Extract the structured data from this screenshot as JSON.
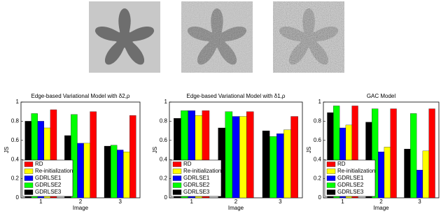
{
  "chart_data": [
    {
      "type": "bar",
      "title": "Edge-based Variational Model with δ2,ρ",
      "xlabel": "Image",
      "ylabel": "JS",
      "categories": [
        "1",
        "2",
        "3"
      ],
      "series": [
        {
          "name": "RD",
          "color": "#ff0000",
          "values": [
            0.92,
            0.9,
            0.86
          ]
        },
        {
          "name": "Re-initialization",
          "color": "#ffff00",
          "values": [
            0.73,
            0.57,
            0.48
          ]
        },
        {
          "name": "GDRLSE1",
          "color": "#0000ff",
          "values": [
            0.8,
            0.57,
            0.5
          ]
        },
        {
          "name": "GDRLSE2",
          "color": "#00ff00",
          "values": [
            0.88,
            0.87,
            0.55
          ]
        },
        {
          "name": "GDRLSE3",
          "color": "#000000",
          "values": [
            0.8,
            0.65,
            0.54
          ]
        }
      ],
      "ylim": [
        0,
        1
      ],
      "yticks": [
        0,
        0.2,
        0.4,
        0.6,
        0.8,
        1
      ],
      "legend": "lower left"
    },
    {
      "type": "bar",
      "title": "Edge-based Variational Model with δ1,ρ",
      "xlabel": "Image",
      "ylabel": "JS",
      "categories": [
        "1",
        "2",
        "3"
      ],
      "series": [
        {
          "name": "RD",
          "color": "#ff0000",
          "values": [
            0.91,
            0.9,
            0.85
          ]
        },
        {
          "name": "Re-initialization",
          "color": "#ffff00",
          "values": [
            0.86,
            0.85,
            0.71
          ]
        },
        {
          "name": "GDRLSE1",
          "color": "#0000ff",
          "values": [
            0.91,
            0.85,
            0.67
          ]
        },
        {
          "name": "GDRLSE2",
          "color": "#00ff00",
          "values": [
            0.91,
            0.9,
            0.64
          ]
        },
        {
          "name": "GDRLSE3",
          "color": "#000000",
          "values": [
            0.83,
            0.73,
            0.7
          ]
        }
      ],
      "ylim": [
        0,
        1
      ],
      "yticks": [
        0,
        0.2,
        0.4,
        0.6,
        0.8,
        1
      ],
      "legend": "lower left"
    },
    {
      "type": "bar",
      "title": "GAC Model",
      "xlabel": "Image",
      "ylabel": "JS",
      "categories": [
        "1",
        "2",
        "3"
      ],
      "series": [
        {
          "name": "RD",
          "color": "#ff0000",
          "values": [
            0.96,
            0.93,
            0.93
          ]
        },
        {
          "name": "Re-initialization",
          "color": "#ffff00",
          "values": [
            0.76,
            0.53,
            0.49
          ]
        },
        {
          "name": "GDRLSE1",
          "color": "#0000ff",
          "values": [
            0.73,
            0.48,
            0.29
          ]
        },
        {
          "name": "GDRLSE2",
          "color": "#00ff00",
          "values": [
            0.96,
            0.93,
            0.88
          ]
        },
        {
          "name": "GDRLSE3",
          "color": "#000000",
          "values": [
            0.89,
            0.79,
            0.51
          ]
        }
      ],
      "ylim": [
        0,
        1
      ],
      "yticks": [
        0,
        0.2,
        0.4,
        0.6,
        0.8,
        1
      ],
      "legend": "lower left"
    }
  ]
}
